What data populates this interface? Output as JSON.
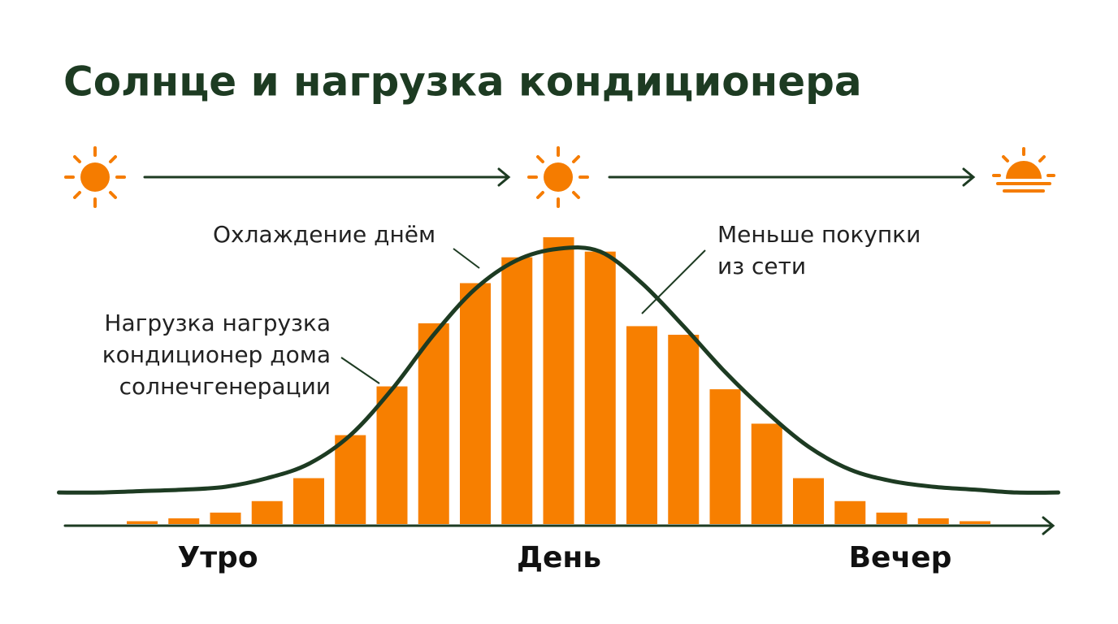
{
  "chart_data": {
    "type": "bar",
    "title": "Солнце и нагрузка кондиционера",
    "categories": [
      null,
      null,
      null,
      null,
      null,
      null,
      null,
      null,
      null,
      null,
      null,
      null,
      null,
      null,
      null,
      null,
      null,
      null,
      null,
      null,
      null,
      null,
      null,
      null,
      null
    ],
    "ylim": [
      0,
      100
    ],
    "series": [
      {
        "type": "bar",
        "color": "#f77f00",
        "values": [
          null,
          null,
          1,
          2,
          4,
          8,
          16,
          31,
          48,
          70,
          84,
          93,
          100,
          95,
          69,
          66,
          47,
          35,
          16,
          8,
          4,
          2,
          1,
          null,
          null
        ]
      },
      {
        "type": "line",
        "color": "#1d3b22",
        "values": [
          11,
          11,
          11.5,
          12,
          13,
          16,
          21,
          31,
          47,
          66,
          82,
          92,
          96,
          95,
          84,
          69,
          53,
          39,
          27,
          19,
          15,
          13,
          12,
          11,
          11
        ]
      }
    ],
    "annotations": [
      {
        "lines": [
          "Охлаждение днём"
        ]
      },
      {
        "lines": [
          "Нагрузка нагрузка",
          "кондиционер дома",
          "солнечгенерации"
        ]
      },
      {
        "lines": [
          "Меньше покупки",
          "из сети"
        ]
      }
    ],
    "time_labels": [
      "Утро",
      "День",
      "Вечер"
    ]
  }
}
